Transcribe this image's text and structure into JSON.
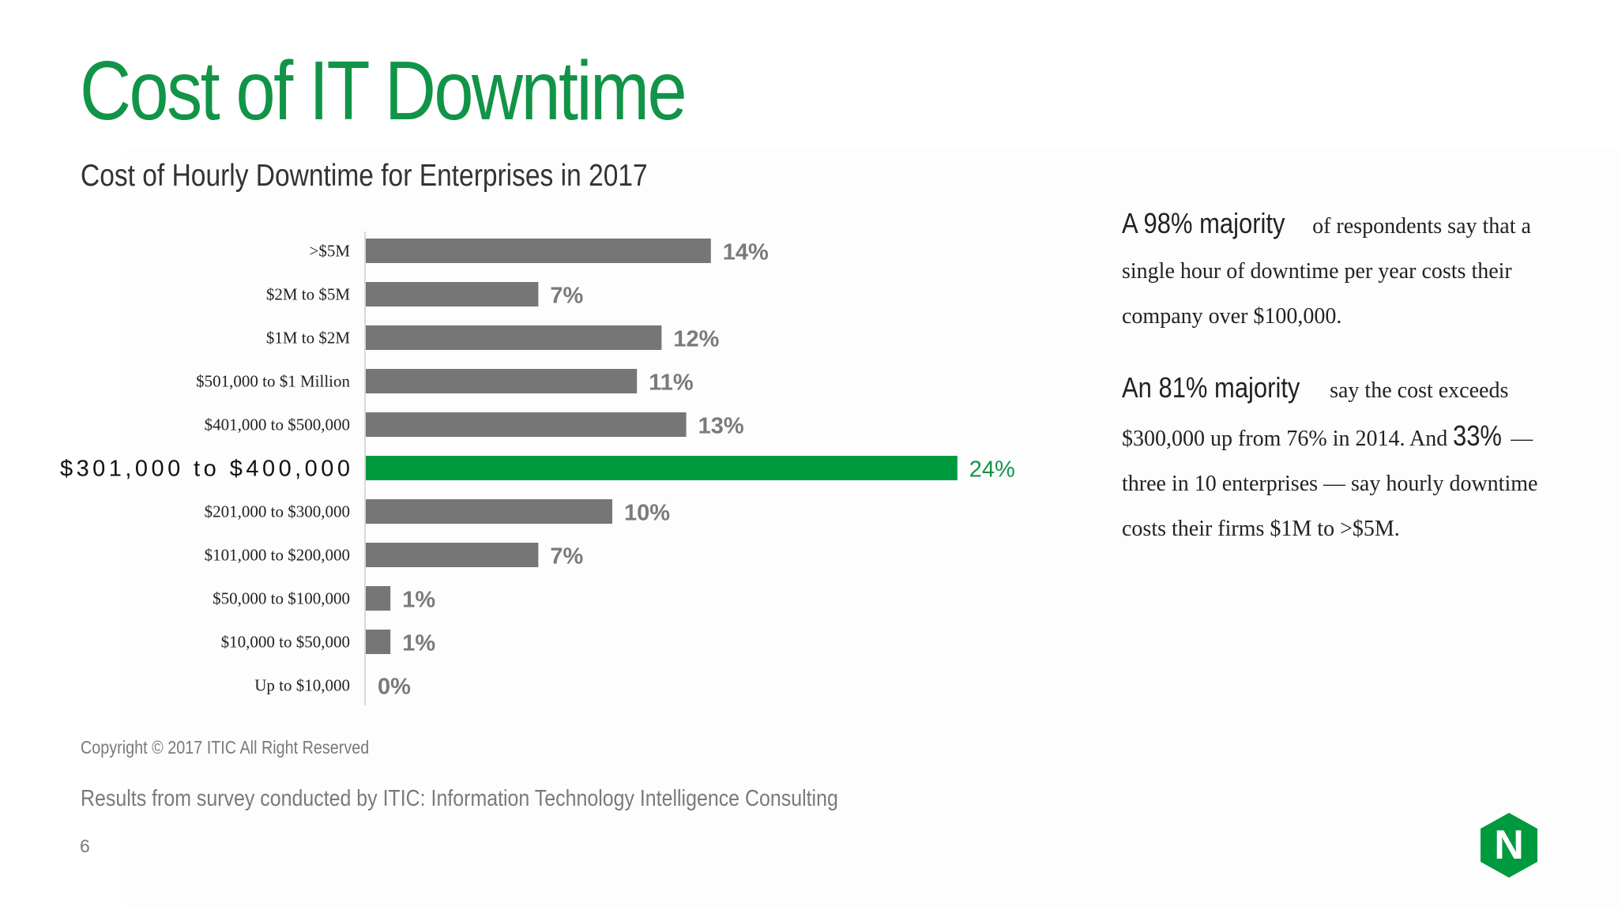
{
  "title": "Cost of IT Downtime",
  "subtitle": "Cost of Hourly Downtime for Enterprises in 2017",
  "chart_data": {
    "type": "bar",
    "orientation": "horizontal",
    "categories": [
      ">$5M",
      "$2M to $5M",
      "$1M to $2M",
      "$501,000 to $1 Million",
      "$401,000 to $500,000",
      "$301,000 to $400,000",
      "$201,000 to $300,000",
      "$101,000 to $200,000",
      "$50,000 to $100,000",
      "$10,000 to $50,000",
      "Up to $10,000"
    ],
    "values": [
      14,
      7,
      12,
      11,
      13,
      24,
      10,
      7,
      1,
      1,
      0
    ],
    "value_labels": [
      "14%",
      "7%",
      "12%",
      "11%",
      "13%",
      "24%",
      "10%",
      "7%",
      "1%",
      "1%",
      "0%"
    ],
    "highlight_index": 5,
    "bar_color": "#767676",
    "highlight_color": "#009a3e",
    "grid": false,
    "legend": "none"
  },
  "callout1": {
    "lead": "A 98% majority",
    "text": " of respondents say that a single hour of downtime per year costs their company over $100,000."
  },
  "callout2": {
    "lead": "An 81% majority",
    "text_a": " say the cost exceeds $300,000 up from 76% in 2014. And ",
    "emph": "33%",
    "text_b": " — three in 10 enterprises — say hourly downtime costs their firms $1M to >$5M."
  },
  "copyright": "Copyright © 2017 ITIC All Right Reserved",
  "source": "Results from survey conducted by ITIC: Information Technology Intelligence Consulting",
  "page_number": "6",
  "logo": {
    "letter": "N",
    "color": "#009a3e"
  },
  "colors": {
    "accent": "#119447",
    "text": "#222222",
    "muted": "#7a7a7a"
  }
}
